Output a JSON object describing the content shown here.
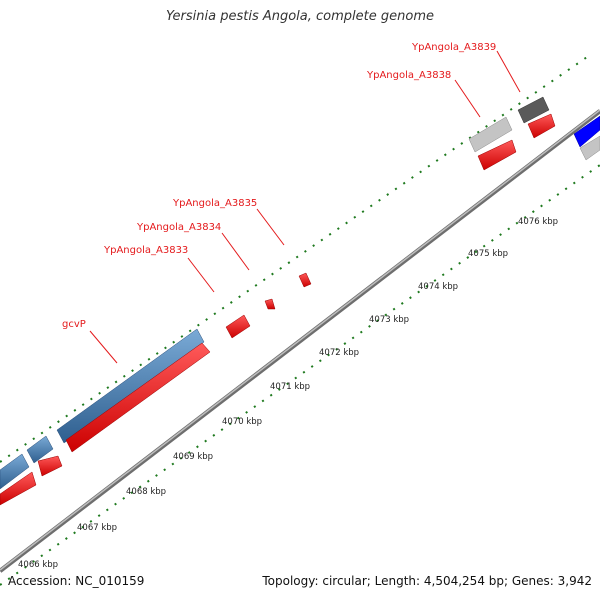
{
  "title": "Yersinia pestis Angola, complete genome",
  "footer": {
    "accession": "Accession: NC_010159",
    "topology": "Topology: circular; Length: 4,504,254 bp; Genes: 3,942"
  },
  "colors": {
    "backbone": "#8c8c8c",
    "forward_strand": "#4a7fb5",
    "reverse_strand": "#ff0000",
    "label": "#e41a1c",
    "tick": "#1f7a1f",
    "blue_gene": "#0000ff",
    "gray_light": "#c4c4c4",
    "gray_dark": "#5a5a5a"
  },
  "gene_labels": [
    {
      "id": "gcvP",
      "text": "gcvP"
    },
    {
      "id": "a3833",
      "text": "YpAngola_A3833"
    },
    {
      "id": "a3834",
      "text": "YpAngola_A3834"
    },
    {
      "id": "a3835",
      "text": "YpAngola_A3835"
    },
    {
      "id": "a3838",
      "text": "YpAngola_A3838"
    },
    {
      "id": "a3839",
      "text": "YpAngola_A3839"
    }
  ],
  "kbp_labels": [
    "4066 kbp",
    "4067 kbp",
    "4068 kbp",
    "4069 kbp",
    "4070 kbp",
    "4071 kbp",
    "4072 kbp",
    "4073 kbp",
    "4074 kbp",
    "4075 kbp",
    "4076 kbp"
  ]
}
